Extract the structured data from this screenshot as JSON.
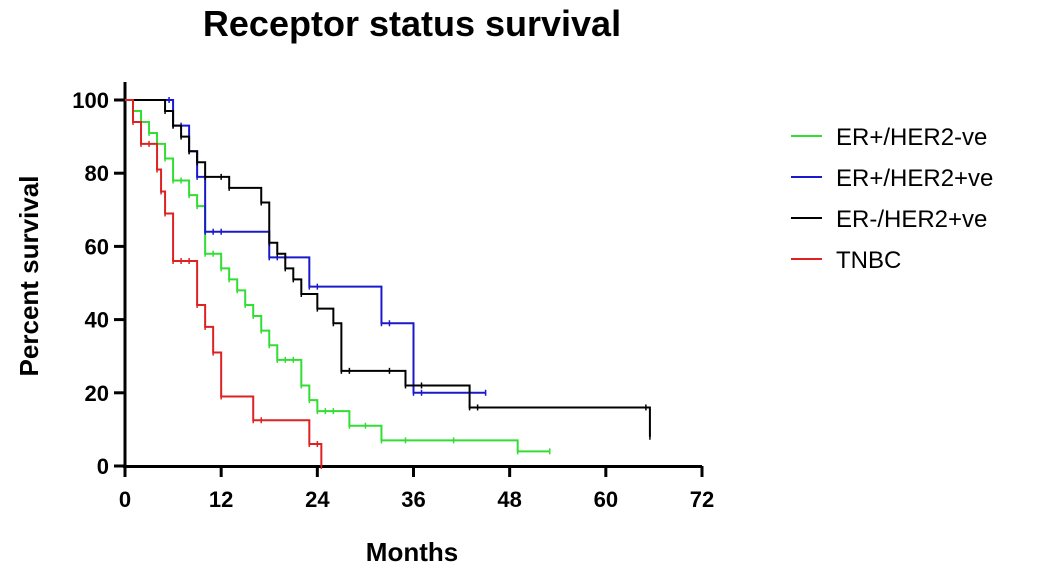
{
  "chart_data": {
    "type": "line",
    "title": "Receptor status survival",
    "xlabel": "Months",
    "ylabel": "Percent survival",
    "xlim": [
      0,
      72
    ],
    "ylim": [
      0,
      100
    ],
    "xticks": [
      0,
      12,
      24,
      36,
      48,
      60,
      72
    ],
    "yticks": [
      0,
      20,
      40,
      60,
      80,
      100
    ],
    "grid": false,
    "legend_position": "right",
    "step": true,
    "series": [
      {
        "name": "ER+/HER2-ve",
        "color": "#33dd33",
        "x": [
          0,
          1,
          2,
          3,
          4,
          5,
          6,
          7,
          8,
          9,
          10,
          11,
          12,
          13,
          14,
          15,
          16,
          17,
          18,
          19,
          20,
          21,
          22,
          23,
          24,
          25,
          26,
          28,
          30,
          32,
          35,
          41,
          49,
          53
        ],
        "y": [
          100,
          97,
          94,
          91,
          88,
          84,
          78,
          78,
          74,
          71,
          58,
          58,
          54,
          51,
          48,
          44,
          41,
          37,
          33,
          29,
          29,
          29,
          22,
          18,
          15,
          15,
          15,
          11,
          11,
          7,
          7,
          7,
          4,
          4
        ]
      },
      {
        "name": "ER+/HER2+ve",
        "color": "#1a1acc",
        "x": [
          0,
          5.5,
          6,
          7,
          8,
          9,
          10,
          11,
          12,
          18,
          19,
          20,
          23,
          24,
          32,
          33,
          36,
          37,
          45
        ],
        "y": [
          100,
          100,
          93,
          93,
          86,
          79,
          64,
          64,
          64,
          57,
          57,
          57,
          49,
          49,
          39,
          39,
          20,
          20,
          20
        ]
      },
      {
        "name": "ER-/HER2+ve",
        "color": "#000000",
        "x": [
          0,
          5,
          6,
          7,
          8,
          9,
          10,
          12,
          13,
          17,
          18,
          19,
          20,
          21,
          22,
          24,
          26,
          27,
          28,
          33,
          35,
          37,
          43,
          44,
          65,
          65.5
        ],
        "y": [
          100,
          97,
          93,
          90,
          86,
          83,
          79,
          79,
          76,
          72,
          61,
          58,
          54,
          51,
          47,
          43,
          39,
          26,
          26,
          26,
          22,
          22,
          16,
          16,
          16,
          8
        ]
      },
      {
        "name": "TNBC",
        "color": "#dd2222",
        "x": [
          0,
          1,
          2,
          3,
          4,
          4.5,
          5,
          6,
          7,
          8,
          9,
          10,
          11,
          12,
          16,
          17,
          23,
          24,
          24.5
        ],
        "y": [
          100,
          94,
          88,
          88,
          81,
          75,
          69,
          56,
          56,
          56,
          44,
          38,
          31,
          19,
          12.5,
          12.5,
          6,
          6,
          0
        ]
      }
    ]
  }
}
